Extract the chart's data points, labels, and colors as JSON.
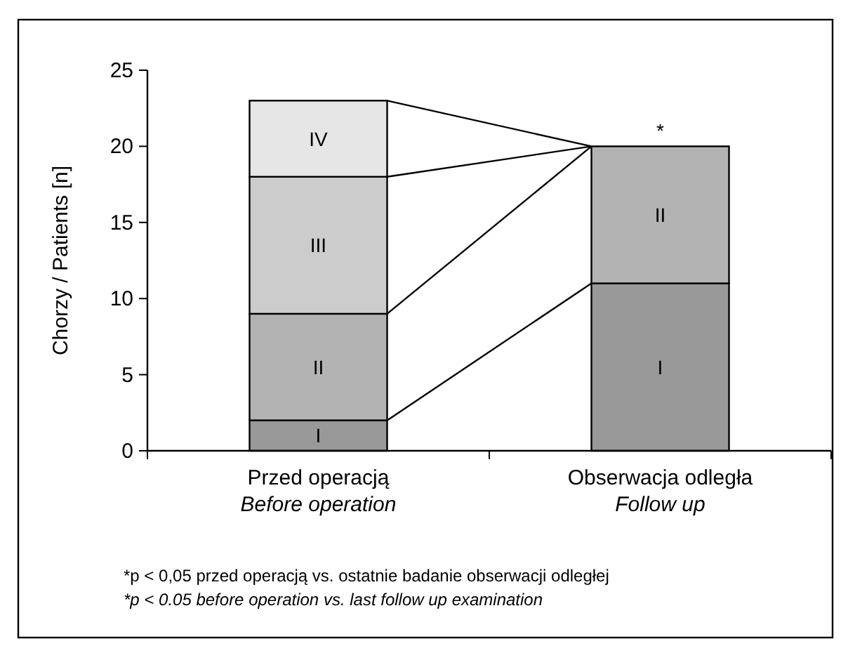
{
  "chart_data": {
    "type": "bar",
    "stacked": true,
    "ylabel": "Chorzy / Patients [n]",
    "categories": [
      "Przed operacją\nBefore operation",
      "Obserwacja odległa\nFollow up"
    ],
    "series": [
      {
        "name": "I",
        "color": "#999999",
        "values": [
          2,
          11
        ]
      },
      {
        "name": "II",
        "color": "#b3b3b3",
        "values": [
          7,
          9
        ]
      },
      {
        "name": "III",
        "color": "#cccccc",
        "values": [
          9,
          null
        ]
      },
      {
        "name": "IV",
        "color": "#e6e6e6",
        "values": [
          5,
          null
        ]
      }
    ],
    "ylim": [
      0,
      25
    ],
    "yticks": [
      0,
      5,
      10,
      15,
      20,
      25
    ],
    "grid": false,
    "annotations": [
      {
        "text": "*",
        "x": "Obserwacja odległa\nFollow up",
        "y": 20
      },
      "*p < 0,05 przed operacją vs. ostatnie badanie obserwacji odległej",
      "*p < 0.05 before operation vs. last follow up examination"
    ]
  }
}
